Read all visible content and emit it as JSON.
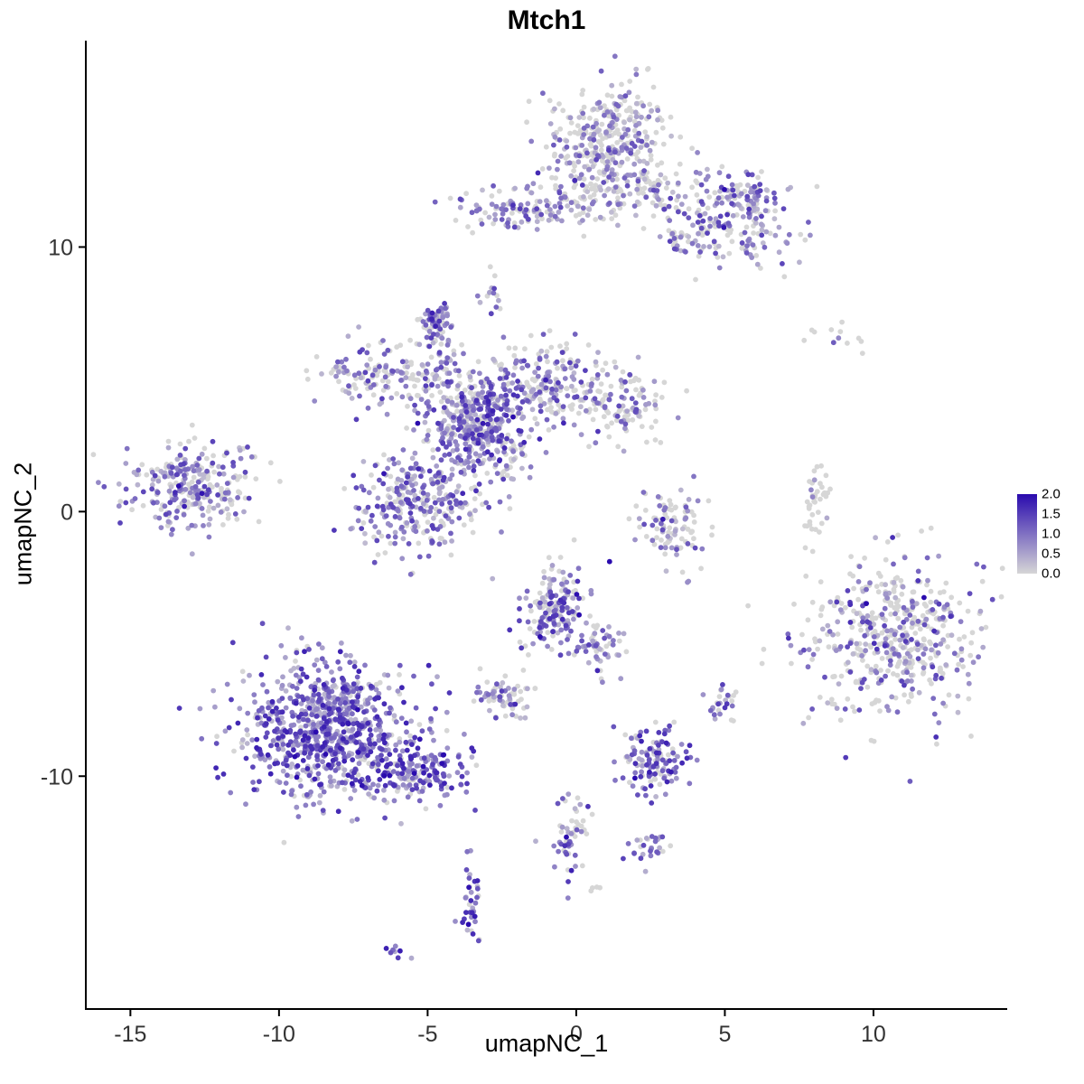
{
  "title": "Mtch1",
  "axes": {
    "x": {
      "label": "umapNC_1",
      "ticks": [
        -15,
        -10,
        -5,
        0,
        5,
        10
      ]
    },
    "y": {
      "label": "umapNC_2",
      "ticks": [
        -10,
        0,
        10
      ]
    }
  },
  "legend": {
    "ticks": [
      "2.0",
      "1.5",
      "1.0",
      "0.5",
      "0.0"
    ],
    "min": 0.0,
    "max": 2.0
  },
  "colors": {
    "low": "#D6D6D6",
    "high": "#2A0BAE",
    "axis": "#000000",
    "tick_text": "#333333"
  },
  "chart_data": {
    "type": "scatter",
    "title": "Mtch1",
    "xlabel": "umapNC_1",
    "ylabel": "umapNC_2",
    "xlim": [
      -16.5,
      14.5
    ],
    "ylim": [
      -18.8,
      17.8
    ],
    "x_ticks": [
      -15,
      -10,
      -5,
      0,
      5,
      10
    ],
    "y_ticks": [
      -10,
      0,
      10
    ],
    "grid": false,
    "legend_position": "right",
    "color_scale": {
      "min": 0.0,
      "max": 2.0,
      "low_color": "#D6D6D6",
      "high_color": "#2A0BAE"
    },
    "point_radius": 2.9,
    "seed": 20240601,
    "clusters": [
      {
        "name": "top-main",
        "cx": 1.2,
        "cy": 14.1,
        "sx": 1.05,
        "sy": 1.05,
        "n": 330,
        "p0": 0.6,
        "intensity": 0.9
      },
      {
        "name": "top-main-lower",
        "cx": 1.8,
        "cy": 12.3,
        "sx": 1.3,
        "sy": 0.6,
        "n": 120,
        "p0": 0.55,
        "intensity": 0.9
      },
      {
        "name": "top-right-arm",
        "cx": 4.9,
        "cy": 10.9,
        "sx": 1.1,
        "sy": 0.9,
        "n": 200,
        "p0": 0.4,
        "intensity": 1.0
      },
      {
        "name": "top-right-tip",
        "cx": 5.8,
        "cy": 11.8,
        "sx": 0.5,
        "sy": 0.4,
        "n": 60,
        "p0": 0.3,
        "intensity": 1.1
      },
      {
        "name": "top-left-arm",
        "cx": -2.1,
        "cy": 11.4,
        "sx": 0.95,
        "sy": 0.45,
        "n": 110,
        "p0": 0.35,
        "intensity": 1.0
      },
      {
        "name": "top-bridge",
        "cx": 0.2,
        "cy": 11.6,
        "sx": 0.7,
        "sy": 0.4,
        "n": 40,
        "p0": 0.6,
        "intensity": 0.8
      },
      {
        "name": "dot-cluster-8",
        "cx": -2.8,
        "cy": 8.4,
        "sx": 0.18,
        "sy": 0.3,
        "n": 14,
        "p0": 0.3,
        "intensity": 1.1
      },
      {
        "name": "central-core",
        "cx": -3.3,
        "cy": 3.4,
        "sx": 0.85,
        "sy": 0.95,
        "n": 420,
        "p0": 0.25,
        "intensity": 1.15
      },
      {
        "name": "central-left-arm",
        "cx": -6.6,
        "cy": 5.1,
        "sx": 1.1,
        "sy": 0.65,
        "n": 150,
        "p0": 0.45,
        "intensity": 1.0
      },
      {
        "name": "central-top-strand",
        "cx": -4.65,
        "cy": 6.1,
        "sx": 0.3,
        "sy": 0.7,
        "n": 60,
        "p0": 0.35,
        "intensity": 1.1
      },
      {
        "name": "central-top-blob",
        "cx": -4.7,
        "cy": 7.35,
        "sx": 0.28,
        "sy": 0.3,
        "n": 45,
        "p0": 0.25,
        "intensity": 1.2
      },
      {
        "name": "central-right-arm",
        "cx": -0.9,
        "cy": 4.9,
        "sx": 1.1,
        "sy": 0.85,
        "n": 210,
        "p0": 0.45,
        "intensity": 1.0
      },
      {
        "name": "central-right-tip",
        "cx": 1.5,
        "cy": 4.1,
        "sx": 0.75,
        "sy": 0.8,
        "n": 110,
        "p0": 0.55,
        "intensity": 0.95
      },
      {
        "name": "central-lower-blob",
        "cx": -5.4,
        "cy": 0.3,
        "sx": 1.05,
        "sy": 1.0,
        "n": 300,
        "p0": 0.3,
        "intensity": 1.05
      },
      {
        "name": "central-diag-strand",
        "cx": -2.2,
        "cy": 1.9,
        "sx": 0.4,
        "sy": 0.7,
        "n": 35,
        "p0": 0.45,
        "intensity": 1.0
      },
      {
        "name": "left-cluster",
        "cx": -12.9,
        "cy": 1.0,
        "sx": 1.15,
        "sy": 0.8,
        "n": 280,
        "p0": 0.4,
        "intensity": 1.0
      },
      {
        "name": "mid-right-small",
        "cx": 3.3,
        "cy": -0.5,
        "sx": 0.6,
        "sy": 0.75,
        "n": 100,
        "p0": 0.65,
        "intensity": 0.9
      },
      {
        "name": "right-arc",
        "cx": 8.0,
        "cy": 0.4,
        "sx": 0.22,
        "sy": 0.75,
        "n": 40,
        "p0": 0.85,
        "intensity": 0.7
      },
      {
        "name": "right-sparse",
        "cx": 8.6,
        "cy": 6.6,
        "sx": 1.1,
        "sy": 0.4,
        "n": 12,
        "p0": 0.8,
        "intensity": 0.8
      },
      {
        "name": "right-big",
        "cx": 10.6,
        "cy": -4.7,
        "sx": 1.45,
        "sy": 1.5,
        "n": 520,
        "p0": 0.55,
        "intensity": 1.1
      },
      {
        "name": "mid-lower",
        "cx": -0.6,
        "cy": -3.7,
        "sx": 0.65,
        "sy": 0.85,
        "n": 190,
        "p0": 0.3,
        "intensity": 1.15
      },
      {
        "name": "mid-lower-tail",
        "cx": 0.9,
        "cy": -5.0,
        "sx": 0.45,
        "sy": 0.5,
        "n": 45,
        "p0": 0.35,
        "intensity": 1.0
      },
      {
        "name": "small-blob-left",
        "cx": -2.4,
        "cy": -7.0,
        "sx": 0.5,
        "sy": 0.4,
        "n": 70,
        "p0": 0.35,
        "intensity": 1.0
      },
      {
        "name": "bottom-left-main",
        "cx": -8.4,
        "cy": -8.2,
        "sx": 1.5,
        "sy": 1.25,
        "n": 850,
        "p0": 0.12,
        "intensity": 1.2
      },
      {
        "name": "bottom-left-tail",
        "cx": -5.4,
        "cy": -9.9,
        "sx": 0.9,
        "sy": 0.55,
        "n": 170,
        "p0": 0.15,
        "intensity": 1.3
      },
      {
        "name": "small-5",
        "cx": 4.9,
        "cy": -7.4,
        "sx": 0.28,
        "sy": 0.3,
        "n": 26,
        "p0": 0.3,
        "intensity": 1.1
      },
      {
        "name": "cluster-bottom-mid",
        "cx": 2.6,
        "cy": -9.3,
        "sx": 0.5,
        "sy": 0.65,
        "n": 130,
        "p0": 0.2,
        "intensity": 1.3
      },
      {
        "name": "strand-low",
        "cx": -0.2,
        "cy": -12.1,
        "sx": 0.4,
        "sy": 0.85,
        "n": 55,
        "p0": 0.3,
        "intensity": 1.1
      },
      {
        "name": "small-low-right",
        "cx": 2.4,
        "cy": -12.6,
        "sx": 0.3,
        "sy": 0.35,
        "n": 28,
        "p0": 0.3,
        "intensity": 1.15
      },
      {
        "name": "strand-bottom",
        "cx": -3.55,
        "cy": -14.8,
        "sx": 0.18,
        "sy": 0.75,
        "n": 38,
        "p0": 0.2,
        "intensity": 1.35
      },
      {
        "name": "tiny-bottom",
        "cx": -6.2,
        "cy": -16.6,
        "sx": 0.2,
        "sy": 0.15,
        "n": 8,
        "p0": 0.3,
        "intensity": 1.2
      },
      {
        "name": "single-low",
        "cx": 0.6,
        "cy": -14.3,
        "sx": 0.15,
        "sy": 0.12,
        "n": 4,
        "p0": 0.7,
        "intensity": 0.8
      }
    ]
  }
}
